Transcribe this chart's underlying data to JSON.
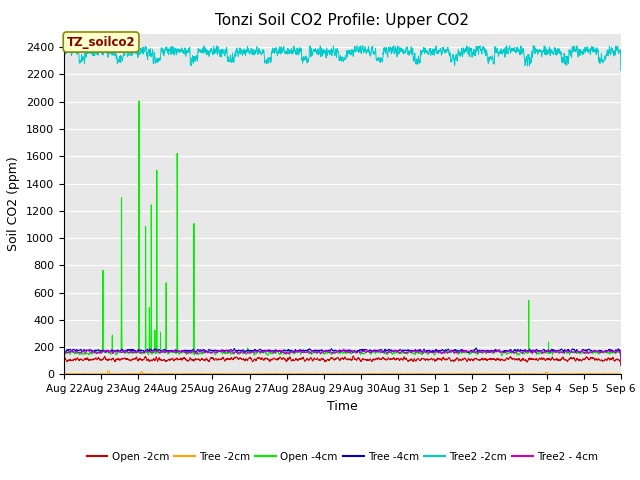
{
  "title": "Tonzi Soil CO2 Profile: Upper CO2",
  "ylabel": "Soil CO2 (ppm)",
  "xlabel": "Time",
  "ylim": [
    0,
    2500
  ],
  "background_color": "#e8e8e8",
  "series": {
    "Open_2cm": {
      "color": "#cc0000",
      "label": "Open -2cm",
      "lw": 0.8
    },
    "Tree_2cm": {
      "color": "#ffa500",
      "label": "Tree -2cm",
      "lw": 0.8
    },
    "Open_4cm": {
      "color": "#00ee00",
      "label": "Open -4cm",
      "lw": 0.8
    },
    "Tree_4cm": {
      "color": "#0000cc",
      "label": "Tree -4cm",
      "lw": 0.8
    },
    "Tree2_2cm": {
      "color": "#00cccc",
      "label": "Tree2 -2cm",
      "lw": 0.8
    },
    "Tree2_4cm": {
      "color": "#cc00cc",
      "label": "Tree2 - 4cm",
      "lw": 0.8
    }
  },
  "xtick_labels": [
    "Aug 22",
    "Aug 23",
    "Aug 24",
    "Aug 25",
    "Aug 26",
    "Aug 27",
    "Aug 28",
    "Aug 29",
    "Aug 30",
    "Aug 31",
    "Sep 1",
    "Sep 2",
    "Sep 3",
    "Sep 4",
    "Sep 5",
    "Sep 6"
  ],
  "annotation_label": "TZ_soilco2",
  "annotation_box_color": "#ffffcc",
  "annotation_text_color": "#880000",
  "annotation_edge_color": "#888800"
}
